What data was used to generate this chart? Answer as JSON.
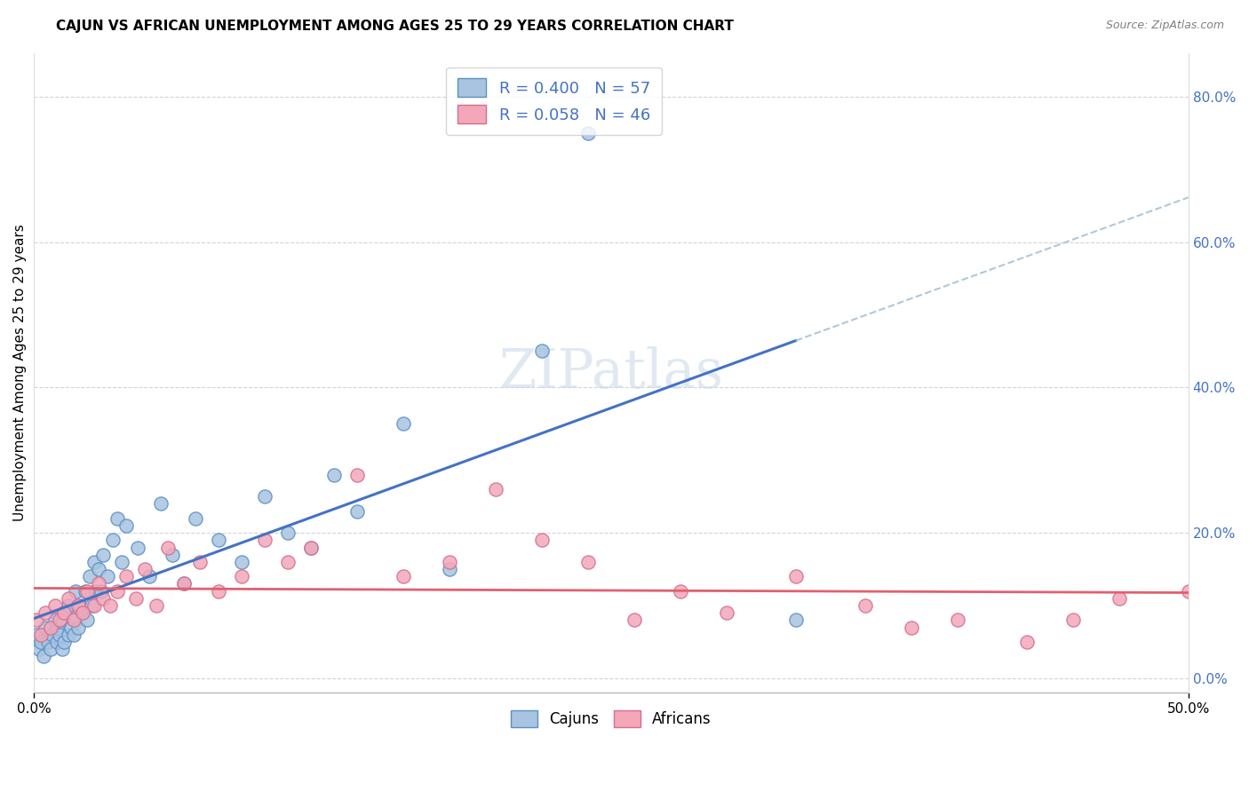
{
  "title": "CAJUN VS AFRICAN UNEMPLOYMENT AMONG AGES 25 TO 29 YEARS CORRELATION CHART",
  "source": "Source: ZipAtlas.com",
  "ylabel": "Unemployment Among Ages 25 to 29 years",
  "xlim": [
    0.0,
    0.5
  ],
  "ylim": [
    -0.02,
    0.86
  ],
  "plot_ylim": [
    -0.02,
    0.86
  ],
  "xtick_shown": [
    0.0,
    0.5
  ],
  "xtick_labels": [
    "0.0%",
    "50.0%"
  ],
  "yticks_right": [
    0.0,
    0.2,
    0.4,
    0.6,
    0.8
  ],
  "ytick_right_labels": [
    "0.0%",
    "20.0%",
    "40.0%",
    "60.0%",
    "80.0%"
  ],
  "grid_yticks": [
    0.0,
    0.2,
    0.4,
    0.6,
    0.8
  ],
  "cajun_color": "#a8c4e0",
  "african_color": "#f4a7b9",
  "cajun_line_color": "#4472c4",
  "african_line_color": "#e06070",
  "cajun_edge_color": "#5b8fc4",
  "african_edge_color": "#d07090",
  "cajun_R": 0.4,
  "cajun_N": 57,
  "african_R": 0.058,
  "african_N": 46,
  "watermark": "ZIPatlas",
  "cajun_x": [
    0.001,
    0.002,
    0.003,
    0.004,
    0.005,
    0.006,
    0.007,
    0.008,
    0.009,
    0.01,
    0.01,
    0.011,
    0.012,
    0.012,
    0.013,
    0.014,
    0.015,
    0.015,
    0.016,
    0.017,
    0.018,
    0.018,
    0.019,
    0.02,
    0.021,
    0.022,
    0.023,
    0.024,
    0.025,
    0.026,
    0.027,
    0.028,
    0.029,
    0.03,
    0.032,
    0.034,
    0.036,
    0.038,
    0.04,
    0.045,
    0.05,
    0.055,
    0.06,
    0.065,
    0.07,
    0.08,
    0.09,
    0.1,
    0.11,
    0.12,
    0.13,
    0.14,
    0.16,
    0.18,
    0.22,
    0.24,
    0.33
  ],
  "cajun_y": [
    0.06,
    0.04,
    0.05,
    0.03,
    0.07,
    0.05,
    0.04,
    0.06,
    0.08,
    0.05,
    0.07,
    0.06,
    0.04,
    0.08,
    0.05,
    0.09,
    0.06,
    0.1,
    0.07,
    0.06,
    0.08,
    0.12,
    0.07,
    0.1,
    0.09,
    0.12,
    0.08,
    0.14,
    0.1,
    0.16,
    0.12,
    0.15,
    0.12,
    0.17,
    0.14,
    0.19,
    0.22,
    0.16,
    0.21,
    0.18,
    0.14,
    0.24,
    0.17,
    0.13,
    0.22,
    0.19,
    0.16,
    0.25,
    0.2,
    0.18,
    0.28,
    0.23,
    0.35,
    0.15,
    0.45,
    0.75,
    0.08
  ],
  "african_x": [
    0.001,
    0.003,
    0.005,
    0.007,
    0.009,
    0.011,
    0.013,
    0.015,
    0.017,
    0.019,
    0.021,
    0.023,
    0.026,
    0.028,
    0.03,
    0.033,
    0.036,
    0.04,
    0.044,
    0.048,
    0.053,
    0.058,
    0.065,
    0.072,
    0.08,
    0.09,
    0.1,
    0.11,
    0.12,
    0.14,
    0.16,
    0.18,
    0.2,
    0.22,
    0.24,
    0.26,
    0.28,
    0.3,
    0.33,
    0.36,
    0.38,
    0.4,
    0.43,
    0.45,
    0.47,
    0.5
  ],
  "african_y": [
    0.08,
    0.06,
    0.09,
    0.07,
    0.1,
    0.08,
    0.09,
    0.11,
    0.08,
    0.1,
    0.09,
    0.12,
    0.1,
    0.13,
    0.11,
    0.1,
    0.12,
    0.14,
    0.11,
    0.15,
    0.1,
    0.18,
    0.13,
    0.16,
    0.12,
    0.14,
    0.19,
    0.16,
    0.18,
    0.28,
    0.14,
    0.16,
    0.26,
    0.19,
    0.16,
    0.08,
    0.12,
    0.09,
    0.14,
    0.1,
    0.07,
    0.08,
    0.05,
    0.08,
    0.11,
    0.12
  ]
}
